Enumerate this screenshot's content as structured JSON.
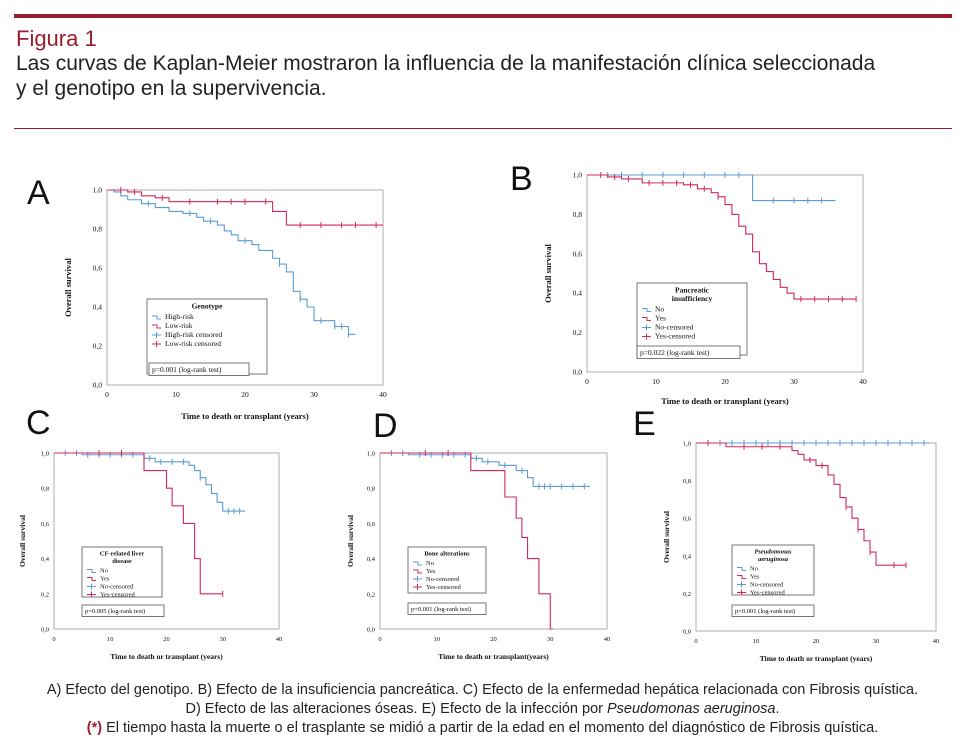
{
  "header": {
    "figure_label": "Figura 1",
    "title_line1": "Las curvas de Kaplan-Meier mostraron la influencia de la manifestación clínica seleccionada",
    "title_line2": "y el genotipo en la supervivencia."
  },
  "colors": {
    "accent": "#9b1b30",
    "blue": "#5b9bd5",
    "red": "#d2285a"
  },
  "footer": {
    "line1": "A) Efecto del genotipo. B) Efecto de la insuficiencia pancreática. C) Efecto de la enfermedad hepática relacionada con Fibrosis quística.",
    "line2_part1": "D) Efecto de las alteraciones óseas. E) Efecto de la infección por ",
    "line2_italic": "Pseudomonas aeruginosa",
    "line2_part2": ".",
    "line3_marker": "(*)",
    "line3_text": " El tiempo hasta la muerte o el trasplante se midió a partir de la edad en el momento del diagnóstico de Fibrosis quística."
  },
  "chart_data": [
    {
      "id": "A",
      "type": "line",
      "step": true,
      "xlabel": "Time to death or transplant (years)",
      "ylabel": "Overall survival",
      "xlim": [
        0,
        40
      ],
      "ylim": [
        0,
        1
      ],
      "xticks": [
        "0",
        "10",
        "20",
        "30",
        "40"
      ],
      "yticks": [
        "0,0",
        "0,2",
        "0,4",
        "0,6",
        "0,8",
        "1,0"
      ],
      "legend_title": [
        "Genotype"
      ],
      "legend": [
        "High-risk",
        "Low-risk",
        "High-risk censored",
        "Low-risk censored"
      ],
      "pvalue": "p=0.001 (log-rank test)",
      "series": [
        {
          "name": "High-risk",
          "color": "#5b9bd5",
          "x": [
            0,
            1,
            2,
            3,
            5,
            7,
            9,
            11,
            13,
            14,
            16,
            17,
            18,
            19,
            21,
            22,
            24,
            25,
            26,
            27,
            28,
            29,
            30,
            33,
            35,
            36
          ],
          "y": [
            1.0,
            0.99,
            0.97,
            0.95,
            0.93,
            0.91,
            0.89,
            0.88,
            0.86,
            0.84,
            0.82,
            0.79,
            0.77,
            0.74,
            0.72,
            0.69,
            0.65,
            0.62,
            0.58,
            0.48,
            0.44,
            0.4,
            0.33,
            0.3,
            0.26,
            0.26
          ],
          "censored_x": [
            6,
            12,
            15,
            20,
            25,
            28,
            31,
            33,
            34,
            35
          ]
        },
        {
          "name": "Low-risk",
          "color": "#d2285a",
          "x": [
            0,
            3,
            5,
            7,
            9,
            22,
            24,
            26,
            40
          ],
          "y": [
            1.0,
            0.99,
            0.97,
            0.96,
            0.94,
            0.94,
            0.89,
            0.82,
            0.82
          ],
          "censored_x": [
            2,
            4,
            8,
            12,
            16,
            18,
            20,
            23,
            28,
            31,
            34,
            36,
            39
          ]
        }
      ]
    },
    {
      "id": "B",
      "type": "line",
      "step": true,
      "xlabel": "Time to death or transplant (years)",
      "ylabel": "Overall survival",
      "xlim": [
        0,
        40
      ],
      "ylim": [
        0,
        1
      ],
      "xticks": [
        "0",
        "10",
        "20",
        "30",
        "40"
      ],
      "yticks": [
        "0,0",
        "0,2",
        "0,4",
        "0,6",
        "0,8",
        "1,0"
      ],
      "legend_title": [
        "Pancreatic",
        "insufficiency"
      ],
      "legend": [
        "No",
        "Yes",
        "No-censored",
        "Yes-censored"
      ],
      "pvalue": "p=0.022 (log-rank test)",
      "series": [
        {
          "name": "No",
          "color": "#5b9bd5",
          "x": [
            0,
            24,
            36
          ],
          "y": [
            1.0,
            0.87,
            0.87
          ],
          "censored_x": [
            3,
            5,
            8,
            11,
            14,
            17,
            20,
            22,
            27,
            30,
            32,
            34
          ]
        },
        {
          "name": "Yes",
          "color": "#d2285a",
          "x": [
            0,
            3,
            5,
            8,
            14,
            16,
            18,
            19,
            20,
            21,
            22,
            23,
            24,
            25,
            26,
            27,
            28,
            29,
            30,
            39
          ],
          "y": [
            1.0,
            0.99,
            0.98,
            0.96,
            0.95,
            0.93,
            0.91,
            0.89,
            0.85,
            0.8,
            0.74,
            0.7,
            0.61,
            0.55,
            0.51,
            0.47,
            0.43,
            0.4,
            0.37,
            0.37
          ],
          "censored_x": [
            2,
            4,
            6,
            9,
            11,
            13,
            15,
            17,
            19,
            31,
            33,
            35,
            37,
            39
          ]
        }
      ]
    },
    {
      "id": "C",
      "type": "line",
      "step": true,
      "xlabel": "Time to death or transplant (years)",
      "ylabel": "Overall survival",
      "xlim": [
        0,
        40
      ],
      "ylim": [
        0,
        1
      ],
      "xticks": [
        "0",
        "10",
        "20",
        "30",
        "40"
      ],
      "yticks": [
        "0,0",
        "0,2",
        "0,4",
        "0,6",
        "0,8",
        "1,0"
      ],
      "legend_title": [
        "CF-related liver",
        "disease"
      ],
      "legend": [
        "No",
        "Yes",
        "No-censored",
        "Yes-censored"
      ],
      "pvalue": "p=0.005 (log-rank test)",
      "series": [
        {
          "name": "No",
          "color": "#5b9bd5",
          "x": [
            0,
            5,
            16,
            18,
            24,
            25,
            26,
            27,
            28,
            29,
            30,
            34
          ],
          "y": [
            1.0,
            0.99,
            0.97,
            0.95,
            0.93,
            0.9,
            0.86,
            0.82,
            0.77,
            0.72,
            0.67,
            0.67
          ],
          "censored_x": [
            2,
            4,
            6,
            8,
            10,
            12,
            14,
            17,
            19,
            21,
            23,
            26,
            31,
            32,
            33
          ]
        },
        {
          "name": "Yes",
          "color": "#d2285a",
          "x": [
            0,
            16,
            20,
            21,
            23,
            25,
            26,
            30
          ],
          "y": [
            1.0,
            0.9,
            0.8,
            0.7,
            0.6,
            0.4,
            0.2,
            0.2
          ],
          "censored_x": [
            8,
            12,
            30
          ]
        }
      ]
    },
    {
      "id": "D",
      "type": "line",
      "step": true,
      "xlabel": "Time to death or transplant(years)",
      "ylabel": "Overall survival",
      "xlim": [
        0,
        40
      ],
      "ylim": [
        0,
        1
      ],
      "xticks": [
        "0",
        "10",
        "20",
        "30",
        "40"
      ],
      "yticks": [
        "0,0",
        "0,2",
        "0,4",
        "0,6",
        "0,8",
        "1,0"
      ],
      "legend_title": [
        "Bone alterations"
      ],
      "legend": [
        "No",
        "Yes",
        "No-censored",
        "Yes-censored"
      ],
      "pvalue": "p=0.001 (log-rank test)",
      "series": [
        {
          "name": "No",
          "color": "#5b9bd5",
          "x": [
            0,
            5,
            16,
            18,
            21,
            24,
            26,
            27,
            37
          ],
          "y": [
            1.0,
            0.99,
            0.97,
            0.95,
            0.93,
            0.9,
            0.86,
            0.81,
            0.81
          ],
          "censored_x": [
            2,
            4,
            7,
            9,
            11,
            13,
            15,
            17,
            19,
            22,
            25,
            28,
            29,
            30,
            32,
            34,
            36
          ]
        },
        {
          "name": "Yes",
          "color": "#d2285a",
          "x": [
            0,
            16,
            22,
            24,
            25,
            26,
            28,
            30,
            30.5
          ],
          "y": [
            1.0,
            0.9,
            0.75,
            0.63,
            0.52,
            0.4,
            0.2,
            0.0,
            0.0
          ],
          "censored_x": [
            8,
            12
          ]
        }
      ]
    },
    {
      "id": "E",
      "type": "line",
      "step": true,
      "xlabel": "Time to death or transplant (years)",
      "ylabel": "Overall survival",
      "xlim": [
        0,
        40
      ],
      "ylim": [
        0,
        1
      ],
      "xticks": [
        "0",
        "10",
        "20",
        "30",
        "40"
      ],
      "yticks": [
        "0,0",
        "0,2",
        "0,4",
        "0,6",
        "0,8",
        "1,0"
      ],
      "legend_title": [
        "Pseudomonas",
        "aeruginosa"
      ],
      "legend": [
        "No",
        "Yes",
        "No-censored",
        "Yes-censored"
      ],
      "pvalue": "p=0.001 (log-rank test)",
      "series": [
        {
          "name": "No",
          "color": "#5b9bd5",
          "x": [
            0,
            39
          ],
          "y": [
            1.0,
            1.0
          ],
          "censored_x": [
            2,
            4,
            6,
            8,
            10,
            12,
            14,
            16,
            18,
            20,
            22,
            24,
            26,
            28,
            30,
            32,
            34,
            36,
            38
          ]
        },
        {
          "name": "Yes",
          "color": "#d2285a",
          "x": [
            0,
            5,
            16,
            17,
            18,
            20,
            22,
            23,
            24,
            25,
            26,
            27,
            28,
            29,
            30,
            35
          ],
          "y": [
            1.0,
            0.98,
            0.96,
            0.94,
            0.91,
            0.88,
            0.83,
            0.78,
            0.71,
            0.66,
            0.6,
            0.54,
            0.48,
            0.42,
            0.35,
            0.35
          ],
          "censored_x": [
            2,
            8,
            11,
            14,
            19,
            21,
            25,
            27,
            29,
            33,
            35
          ]
        }
      ]
    }
  ]
}
